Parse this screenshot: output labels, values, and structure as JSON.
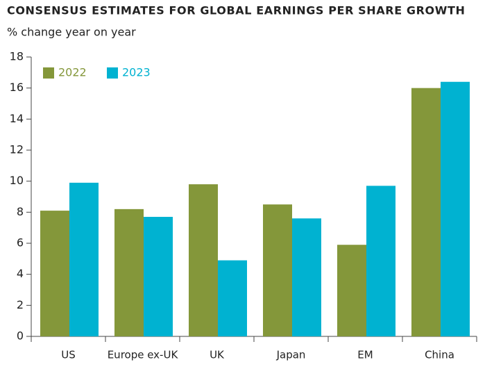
{
  "chart_data": {
    "type": "bar",
    "title": "CONSENSUS ESTIMATES FOR GLOBAL EARNINGS PER SHARE GROWTH",
    "subtitle": "% change year on year",
    "categories": [
      "US",
      "Europe ex-UK",
      "UK",
      "Japan",
      "EM",
      "China"
    ],
    "series": [
      {
        "name": "2022",
        "color": "#84973a",
        "values": [
          8.1,
          8.2,
          9.8,
          8.5,
          5.9,
          16.0
        ]
      },
      {
        "name": "2023",
        "color": "#00b2d1",
        "values": [
          9.9,
          7.7,
          4.9,
          7.6,
          9.7,
          16.4
        ]
      }
    ],
    "ylim": [
      0,
      18
    ],
    "yticks": [
      0,
      2,
      4,
      6,
      8,
      10,
      12,
      14,
      16,
      18
    ],
    "grid": false,
    "legend": "top-left"
  }
}
